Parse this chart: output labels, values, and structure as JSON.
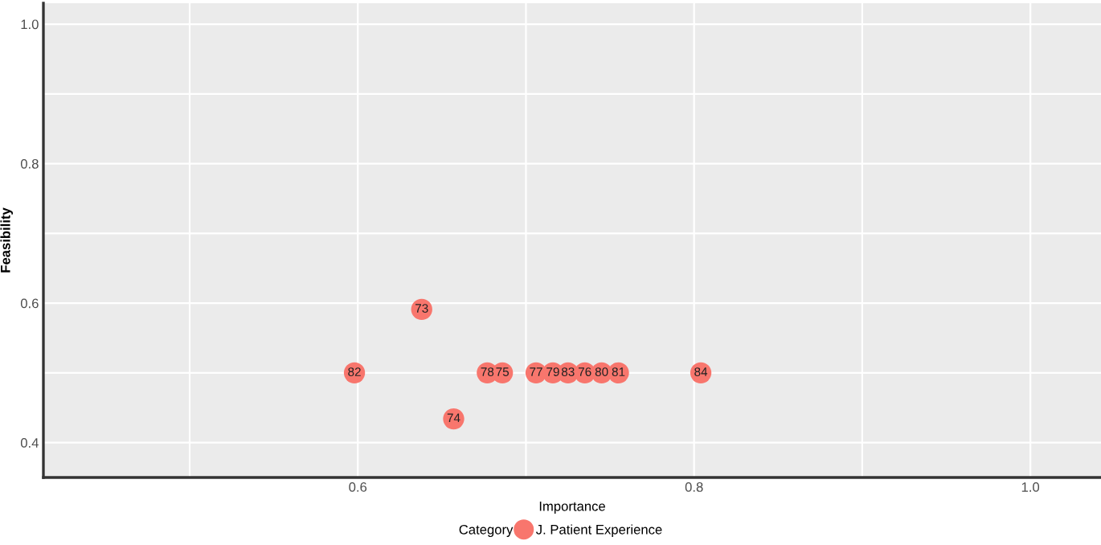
{
  "chart_data": {
    "type": "scatter",
    "xlabel": "Importance",
    "ylabel": "Feasibility",
    "legend_title": "Category",
    "series": [
      {
        "name": "J. Patient Experience",
        "color": "#f8766d",
        "x": [
          0.598,
          0.638,
          0.657,
          0.677,
          0.686,
          0.706,
          0.716,
          0.725,
          0.735,
          0.745,
          0.755,
          0.804
        ],
        "values": [
          0.5,
          0.591,
          0.434,
          0.5,
          0.5,
          0.5,
          0.5,
          0.5,
          0.5,
          0.5,
          0.5,
          0.5
        ]
      }
    ],
    "annotations": [
      {
        "text": "82",
        "x": 0.598,
        "y": 0.5
      },
      {
        "text": "73",
        "x": 0.638,
        "y": 0.591
      },
      {
        "text": "74",
        "x": 0.657,
        "y": 0.434
      },
      {
        "text": "78",
        "x": 0.677,
        "y": 0.5
      },
      {
        "text": "75",
        "x": 0.686,
        "y": 0.5
      },
      {
        "text": "77",
        "x": 0.706,
        "y": 0.5
      },
      {
        "text": "79",
        "x": 0.716,
        "y": 0.5
      },
      {
        "text": "83",
        "x": 0.725,
        "y": 0.5
      },
      {
        "text": "76",
        "x": 0.735,
        "y": 0.5
      },
      {
        "text": "80",
        "x": 0.745,
        "y": 0.5
      },
      {
        "text": "81",
        "x": 0.755,
        "y": 0.5
      },
      {
        "text": "84",
        "x": 0.804,
        "y": 0.5
      }
    ],
    "xlim": [
      0.413,
      1.042
    ],
    "ylim": [
      0.35,
      1.03
    ],
    "xticks": [
      {
        "value": 0.5,
        "label": null
      },
      0.6,
      {
        "value": 0.7,
        "label": null
      },
      0.8,
      {
        "value": 0.9,
        "label": null
      },
      {
        "value": 1.0,
        "label": "1.0"
      }
    ],
    "yticks": [
      0.4,
      {
        "value": 0.5,
        "label": null
      },
      0.6,
      {
        "value": 0.7,
        "label": null
      },
      0.8,
      {
        "value": 0.9,
        "label": null
      },
      {
        "value": 1.0,
        "label": "1.0"
      }
    ],
    "grid": true,
    "legend": "bottom",
    "marker": "circle"
  }
}
